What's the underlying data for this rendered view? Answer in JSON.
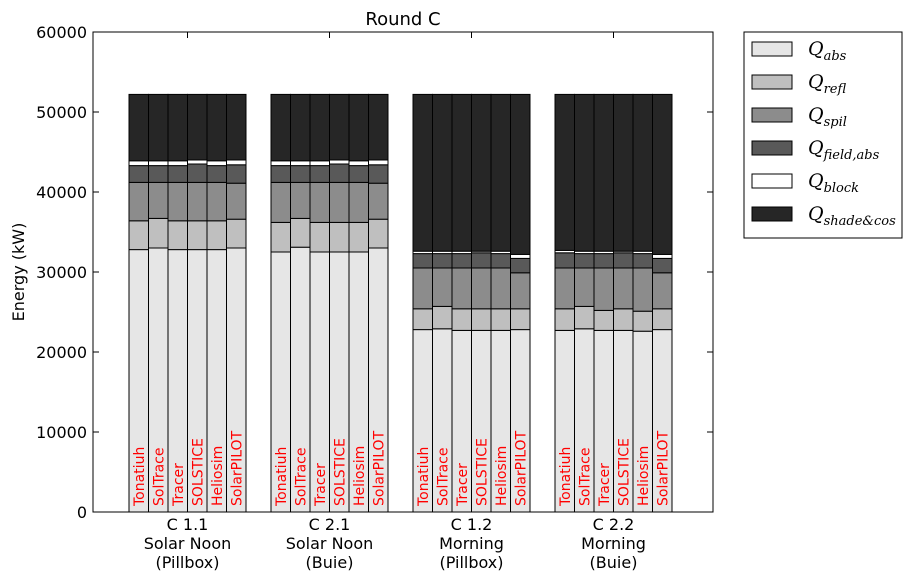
{
  "chart_data": {
    "type": "bar",
    "stacked": true,
    "title": "Round C",
    "xlabel": "",
    "ylabel": "Energy (kW)",
    "ylim": [
      0,
      60000
    ],
    "yticks": [
      "0",
      "10000",
      "20000",
      "30000",
      "40000",
      "50000",
      "60000"
    ],
    "grid": false,
    "legend_placement": "outside-right-top",
    "legend": [
      {
        "key": "abs",
        "main": "Q",
        "sub": "abs",
        "color": "#e6e6e6"
      },
      {
        "key": "refl",
        "main": "Q",
        "sub": "refl",
        "color": "#bfbfbf"
      },
      {
        "key": "spil",
        "main": "Q",
        "sub": "spil",
        "color": "#8c8c8c"
      },
      {
        "key": "field_abs",
        "main": "Q",
        "sub": "field,abs",
        "color": "#595959"
      },
      {
        "key": "block",
        "main": "Q",
        "sub": "block",
        "color": "#ffffff"
      },
      {
        "key": "shade_cos",
        "main": "Q",
        "sub": "shade&cos",
        "color": "#262626"
      }
    ],
    "series_order": [
      "abs",
      "refl",
      "spil",
      "field_abs",
      "block",
      "shade_cos"
    ],
    "groups": [
      {
        "label_lines": [
          "C 1.1",
          "Solar Noon",
          "(Pillbox)"
        ],
        "bars": [
          {
            "label": "Tonatiuh",
            "values": {
              "abs": 32800,
              "refl": 3600,
              "spil": 4800,
              "field_abs": 2100,
              "block": 600,
              "shade_cos": 8300
            }
          },
          {
            "label": "SolTrace",
            "values": {
              "abs": 33000,
              "refl": 3700,
              "spil": 4500,
              "field_abs": 2100,
              "block": 600,
              "shade_cos": 8300
            }
          },
          {
            "label": "Tracer",
            "values": {
              "abs": 32800,
              "refl": 3600,
              "spil": 4800,
              "field_abs": 2100,
              "block": 600,
              "shade_cos": 8300
            }
          },
          {
            "label": "SOLSTICE",
            "values": {
              "abs": 32800,
              "refl": 3600,
              "spil": 4800,
              "field_abs": 2300,
              "block": 500,
              "shade_cos": 8200
            }
          },
          {
            "label": "Heliosim",
            "values": {
              "abs": 32800,
              "refl": 3600,
              "spil": 4800,
              "field_abs": 2100,
              "block": 600,
              "shade_cos": 8300
            }
          },
          {
            "label": "SolarPILOT",
            "values": {
              "abs": 33000,
              "refl": 3600,
              "spil": 4500,
              "field_abs": 2300,
              "block": 600,
              "shade_cos": 8200
            }
          }
        ]
      },
      {
        "label_lines": [
          "C 2.1",
          "Solar Noon",
          "(Buie)"
        ],
        "bars": [
          {
            "label": "Tonatiuh",
            "values": {
              "abs": 32500,
              "refl": 3700,
              "spil": 5000,
              "field_abs": 2100,
              "block": 600,
              "shade_cos": 8300
            }
          },
          {
            "label": "SolTrace",
            "values": {
              "abs": 33100,
              "refl": 3600,
              "spil": 4500,
              "field_abs": 2100,
              "block": 600,
              "shade_cos": 8300
            }
          },
          {
            "label": "Tracer",
            "values": {
              "abs": 32500,
              "refl": 3700,
              "spil": 5000,
              "field_abs": 2100,
              "block": 600,
              "shade_cos": 8300
            }
          },
          {
            "label": "SOLSTICE",
            "values": {
              "abs": 32500,
              "refl": 3700,
              "spil": 5000,
              "field_abs": 2300,
              "block": 500,
              "shade_cos": 8200
            }
          },
          {
            "label": "Heliosim",
            "values": {
              "abs": 32500,
              "refl": 3700,
              "spil": 5000,
              "field_abs": 2100,
              "block": 600,
              "shade_cos": 8300
            }
          },
          {
            "label": "SolarPILOT",
            "values": {
              "abs": 33000,
              "refl": 3600,
              "spil": 4500,
              "field_abs": 2300,
              "block": 600,
              "shade_cos": 8200
            }
          }
        ]
      },
      {
        "label_lines": [
          "C 1.2",
          "Morning",
          "(Pillbox)"
        ],
        "bars": [
          {
            "label": "Tonatiuh",
            "values": {
              "abs": 22800,
              "refl": 2600,
              "spil": 5100,
              "field_abs": 1800,
              "block": 300,
              "shade_cos": 19600
            }
          },
          {
            "label": "SolTrace",
            "values": {
              "abs": 22900,
              "refl": 2800,
              "spil": 4800,
              "field_abs": 1800,
              "block": 300,
              "shade_cos": 19600
            }
          },
          {
            "label": "Tracer",
            "values": {
              "abs": 22700,
              "refl": 2700,
              "spil": 5100,
              "field_abs": 1800,
              "block": 300,
              "shade_cos": 19600
            }
          },
          {
            "label": "SOLSTICE",
            "values": {
              "abs": 22700,
              "refl": 2700,
              "spil": 5100,
              "field_abs": 1900,
              "block": 200,
              "shade_cos": 19600
            }
          },
          {
            "label": "Heliosim",
            "values": {
              "abs": 22700,
              "refl": 2700,
              "spil": 5100,
              "field_abs": 1800,
              "block": 300,
              "shade_cos": 19600
            }
          },
          {
            "label": "SolarPILOT",
            "values": {
              "abs": 22800,
              "refl": 2600,
              "spil": 4500,
              "field_abs": 1800,
              "block": 500,
              "shade_cos": 20000
            }
          }
        ]
      },
      {
        "label_lines": [
          "C 2.2",
          "Morning",
          "(Buie)"
        ],
        "bars": [
          {
            "label": "Tonatiuh",
            "values": {
              "abs": 22700,
              "refl": 2700,
              "spil": 5100,
              "field_abs": 1900,
              "block": 300,
              "shade_cos": 19500
            }
          },
          {
            "label": "SolTrace",
            "values": {
              "abs": 22900,
              "refl": 2800,
              "spil": 4800,
              "field_abs": 1800,
              "block": 300,
              "shade_cos": 19600
            }
          },
          {
            "label": "Tracer",
            "values": {
              "abs": 22700,
              "refl": 2500,
              "spil": 5300,
              "field_abs": 1800,
              "block": 300,
              "shade_cos": 19600
            }
          },
          {
            "label": "SOLSTICE",
            "values": {
              "abs": 22700,
              "refl": 2700,
              "spil": 5100,
              "field_abs": 1900,
              "block": 200,
              "shade_cos": 19600
            }
          },
          {
            "label": "Heliosim",
            "values": {
              "abs": 22600,
              "refl": 2500,
              "spil": 5400,
              "field_abs": 1800,
              "block": 300,
              "shade_cos": 19600
            }
          },
          {
            "label": "SolarPILOT",
            "values": {
              "abs": 22800,
              "refl": 2600,
              "spil": 4500,
              "field_abs": 1800,
              "block": 500,
              "shade_cos": 20000
            }
          }
        ]
      }
    ]
  }
}
